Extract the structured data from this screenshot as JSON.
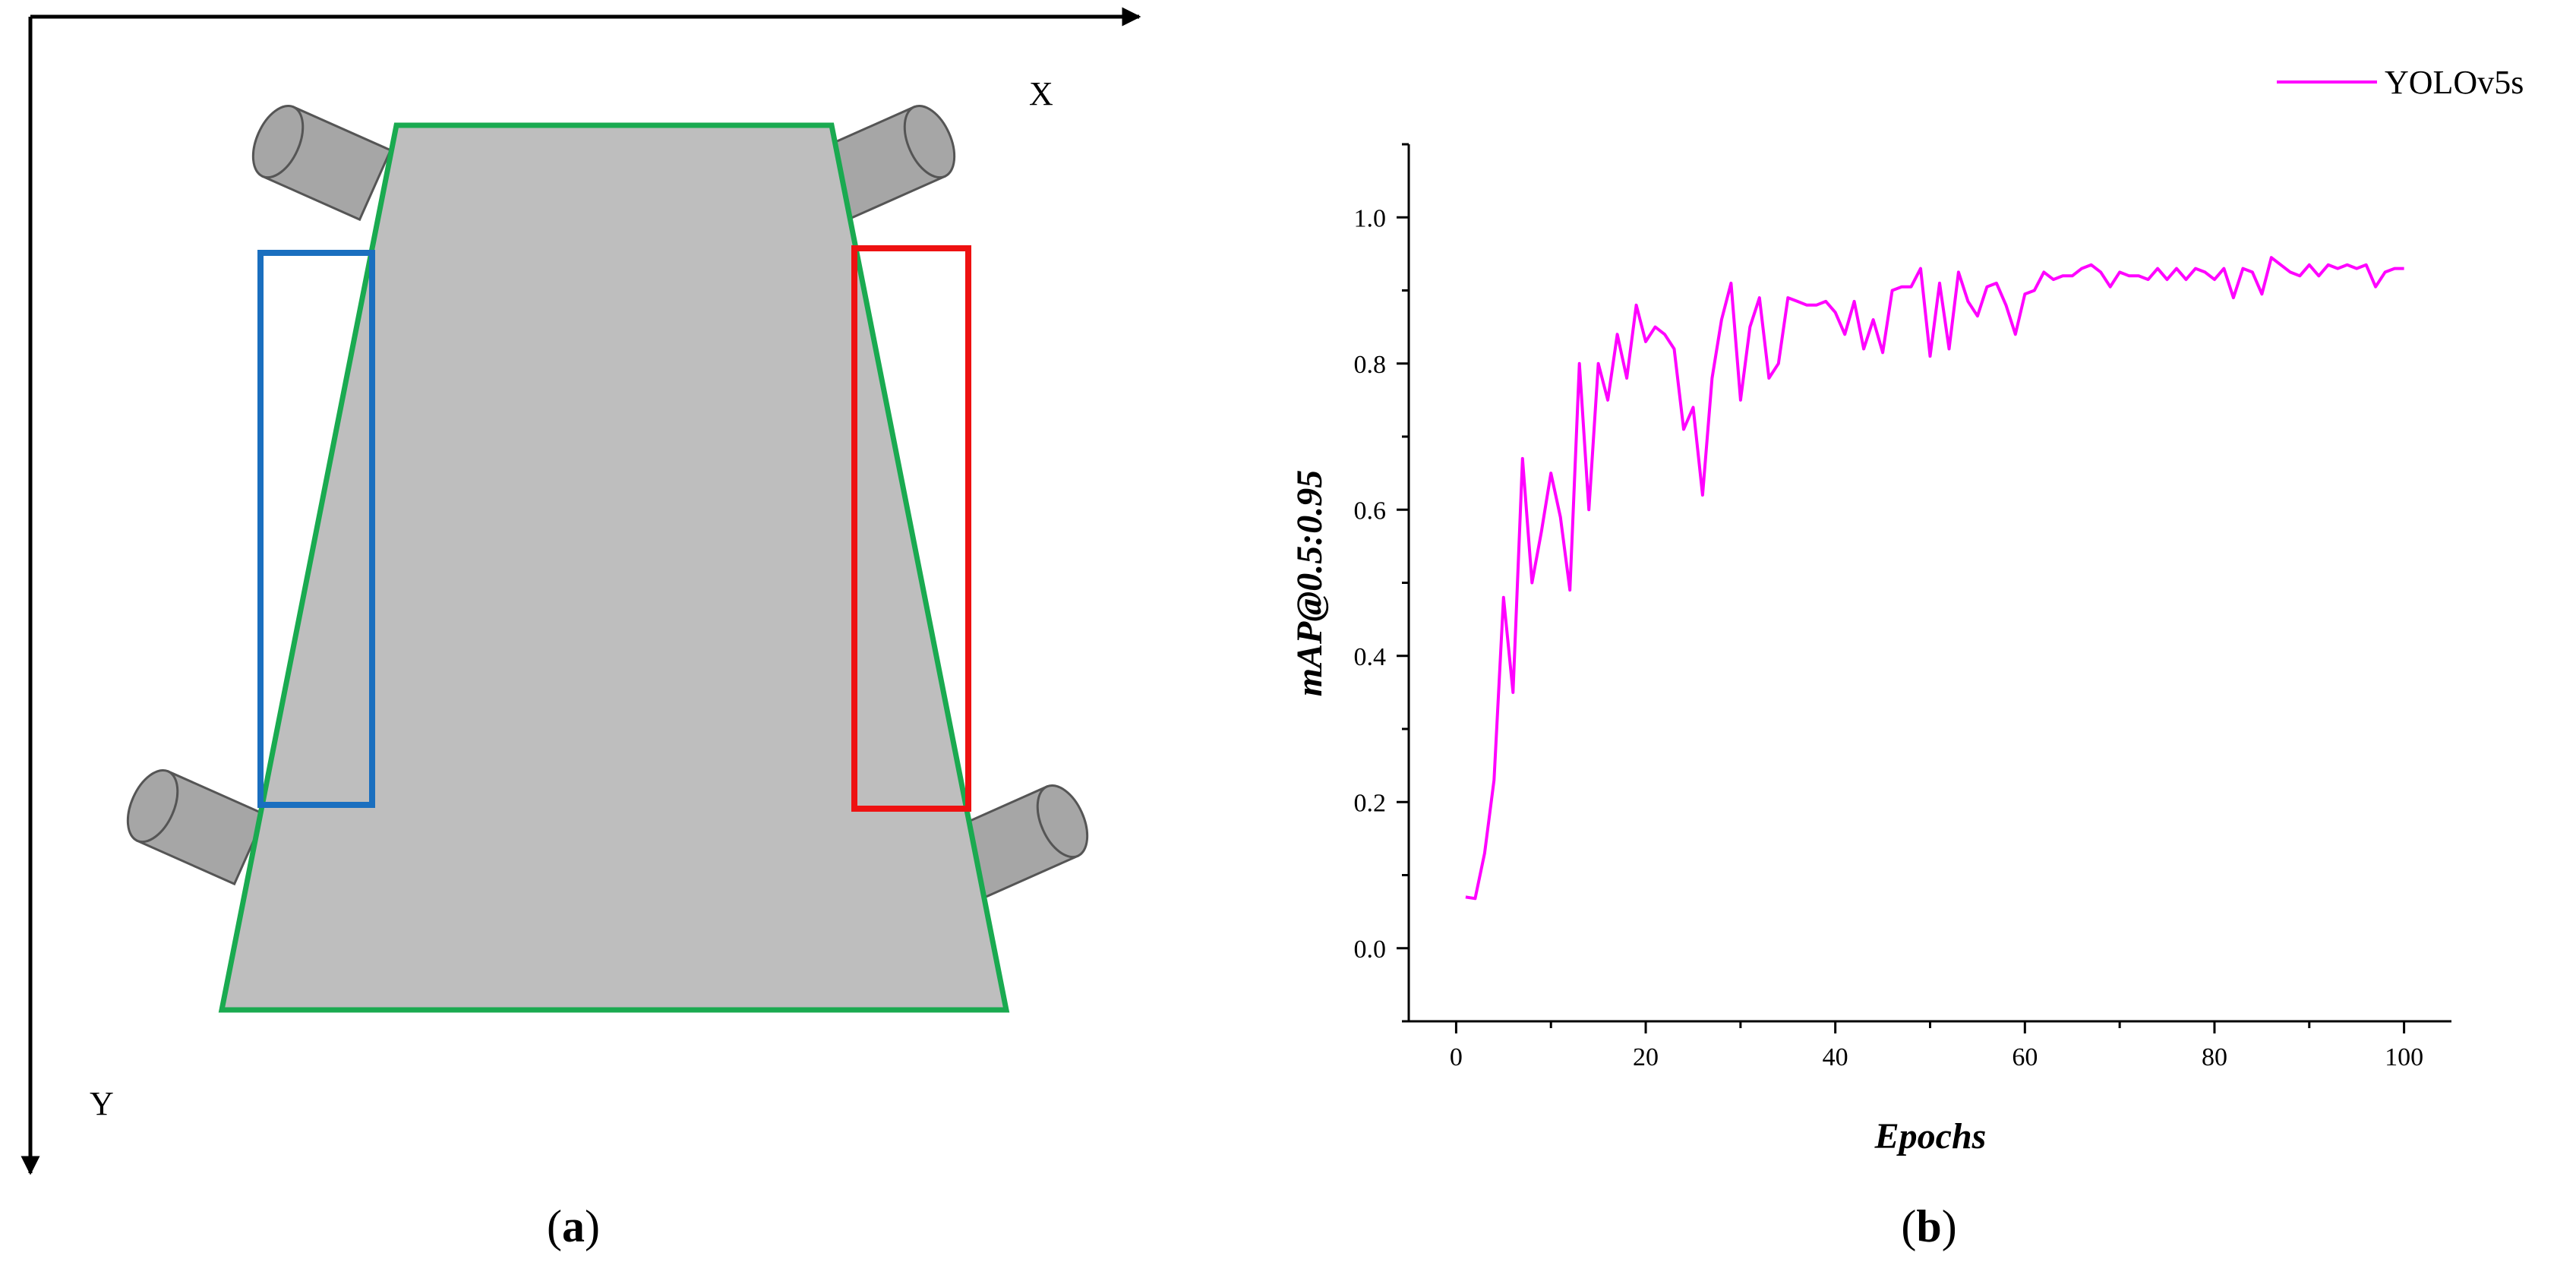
{
  "panel_a": {
    "x_axis_label": "X",
    "y_axis_label": "Y",
    "caption_prefix": "(",
    "caption_letter": "a",
    "caption_suffix": ")",
    "colors": {
      "body_fill": "#bebebe",
      "body_outline": "#1aaa50",
      "left_box": "#1a6fbf",
      "right_box": "#ee1111",
      "wheel_fill": "#a6a6a6",
      "wheel_stroke": "#555555"
    }
  },
  "panel_b": {
    "caption_prefix": "(",
    "caption_letter": "b",
    "caption_suffix": ")"
  },
  "chart_data": {
    "type": "line",
    "title": "",
    "xlabel": "Epochs",
    "ylabel": "mAP@0.5:0.95",
    "xlim": [
      -5,
      105
    ],
    "ylim": [
      -0.1,
      1.1
    ],
    "x_ticks": [
      0,
      20,
      40,
      60,
      80,
      100
    ],
    "y_ticks": [
      0.0,
      0.2,
      0.4,
      0.6,
      0.8,
      1.0
    ],
    "x_tick_labels": [
      "0",
      "20",
      "40",
      "60",
      "80",
      "100"
    ],
    "y_tick_labels": [
      "0.0",
      "0.2",
      "0.4",
      "0.6",
      "0.8",
      "1.0"
    ],
    "grid": false,
    "legend_position": "top-right",
    "series": [
      {
        "name": "YOLOv5s",
        "color": "#ff00ff",
        "x": [
          1,
          2,
          3,
          4,
          5,
          6,
          7,
          8,
          9,
          10,
          11,
          12,
          13,
          14,
          15,
          16,
          17,
          18,
          19,
          20,
          21,
          22,
          23,
          24,
          25,
          26,
          27,
          28,
          29,
          30,
          31,
          32,
          33,
          34,
          35,
          36,
          37,
          38,
          39,
          40,
          41,
          42,
          43,
          44,
          45,
          46,
          47,
          48,
          49,
          50,
          51,
          52,
          53,
          54,
          55,
          56,
          57,
          58,
          59,
          60,
          61,
          62,
          63,
          64,
          65,
          66,
          67,
          68,
          69,
          70,
          71,
          72,
          73,
          74,
          75,
          76,
          77,
          78,
          79,
          80,
          81,
          82,
          83,
          84,
          85,
          86,
          87,
          88,
          89,
          90,
          91,
          92,
          93,
          94,
          95,
          96,
          97,
          98,
          99,
          100
        ],
        "values": [
          0.07,
          0.068,
          0.13,
          0.23,
          0.48,
          0.35,
          0.67,
          0.5,
          0.57,
          0.65,
          0.59,
          0.49,
          0.8,
          0.6,
          0.8,
          0.75,
          0.84,
          0.78,
          0.88,
          0.83,
          0.85,
          0.84,
          0.82,
          0.71,
          0.74,
          0.62,
          0.78,
          0.86,
          0.91,
          0.75,
          0.85,
          0.89,
          0.78,
          0.8,
          0.89,
          0.885,
          0.88,
          0.88,
          0.885,
          0.87,
          0.84,
          0.885,
          0.82,
          0.86,
          0.815,
          0.9,
          0.905,
          0.905,
          0.93,
          0.81,
          0.91,
          0.82,
          0.925,
          0.885,
          0.865,
          0.905,
          0.91,
          0.88,
          0.84,
          0.895,
          0.9,
          0.925,
          0.915,
          0.92,
          0.92,
          0.93,
          0.935,
          0.925,
          0.905,
          0.925,
          0.92,
          0.92,
          0.915,
          0.93,
          0.915,
          0.93,
          0.915,
          0.93,
          0.925,
          0.915,
          0.93,
          0.89,
          0.93,
          0.925,
          0.895,
          0.945,
          0.935,
          0.925,
          0.92,
          0.935,
          0.92,
          0.935,
          0.93,
          0.935,
          0.93,
          0.935,
          0.905,
          0.925,
          0.93,
          0.93
        ]
      }
    ]
  }
}
